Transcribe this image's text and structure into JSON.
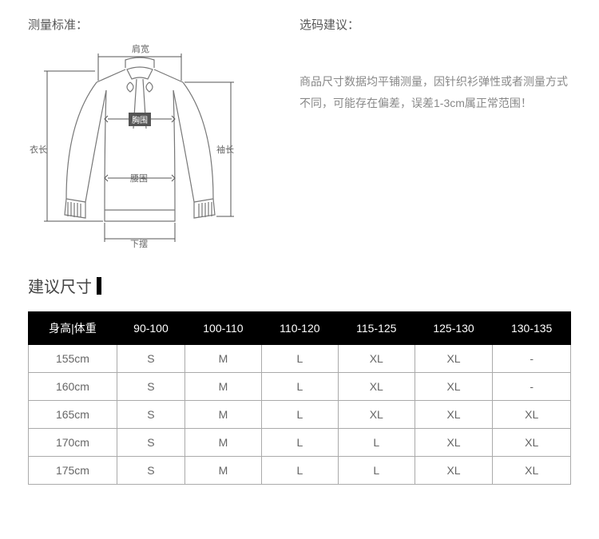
{
  "measure_title": "测量标准：",
  "advice_title": "选码建议：",
  "advice_body": "商品尺寸数据均平铺测量，因针织衫弹性或者测量方式不同，可能存在偏差，误差1-3cm属正常范围！",
  "size_heading": "建议尺寸",
  "diagram_labels": {
    "shoulder": "肩宽",
    "bust": "胸围",
    "length": "衣长",
    "sleeve": "袖长",
    "waist": "腰围",
    "hem": "下摆"
  },
  "table": {
    "header_label": "身高|体重",
    "columns": [
      "90-100",
      "100-110",
      "110-120",
      "115-125",
      "125-130",
      "130-135"
    ],
    "rows": [
      {
        "h": "155cm",
        "v": [
          "S",
          "M",
          "L",
          "XL",
          "XL",
          "-"
        ]
      },
      {
        "h": "160cm",
        "v": [
          "S",
          "M",
          "L",
          "XL",
          "XL",
          "-"
        ]
      },
      {
        "h": "165cm",
        "v": [
          "S",
          "M",
          "L",
          "XL",
          "XL",
          "XL"
        ]
      },
      {
        "h": "170cm",
        "v": [
          "S",
          "M",
          "L",
          "L",
          "XL",
          "XL"
        ]
      },
      {
        "h": "175cm",
        "v": [
          "S",
          "M",
          "L",
          "L",
          "XL",
          "XL"
        ]
      }
    ]
  },
  "style": {
    "header_bg": "#000000",
    "header_fg": "#ffffff",
    "cell_border": "#aaaaaa",
    "cell_fg": "#666666",
    "diagram_stroke": "#777777"
  }
}
